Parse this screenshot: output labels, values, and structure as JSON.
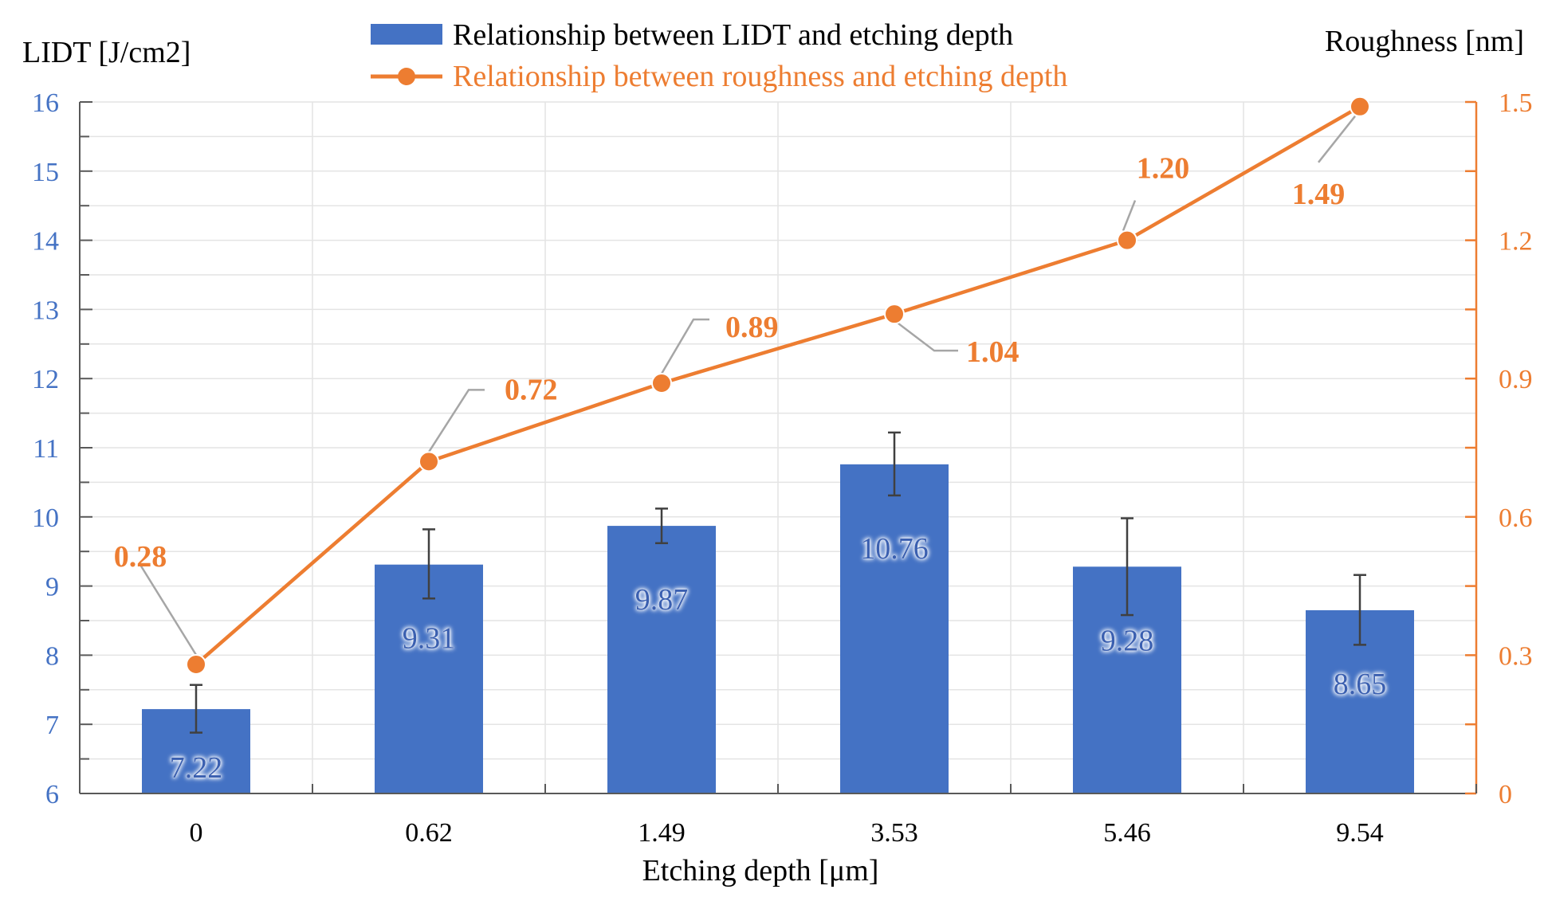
{
  "chart_data": {
    "type": "bar",
    "title": "",
    "categories": [
      "0",
      "0.62",
      "1.49",
      "3.53",
      "5.46",
      "9.54"
    ],
    "xlabel": "Etching depth [μm]",
    "ylabel": "LIDT [J/cm2]",
    "y2label": "Roughness [nm]",
    "ylim": [
      6,
      16
    ],
    "y2lim": [
      0,
      1.5
    ],
    "yticks": [
      6,
      7,
      8,
      9,
      10,
      11,
      12,
      13,
      14,
      15,
      16
    ],
    "yticklabels": [
      "6",
      "7",
      "8",
      "9",
      "10",
      "11",
      "12",
      "13",
      "14",
      "15",
      "16"
    ],
    "y2ticks": [
      0,
      0.3,
      0.6,
      0.9,
      1.2,
      1.5
    ],
    "y2ticklabels": [
      "0",
      "0.3",
      "0.6",
      "0.9",
      "1.2",
      "1.5"
    ],
    "grid": true,
    "legend_position": "top-center",
    "series": [
      {
        "name": "Relationship between LIDT and etching depth",
        "type": "bar",
        "axis": "left",
        "color": "#4472C4",
        "values": [
          7.22,
          9.31,
          9.87,
          10.76,
          9.28,
          8.65
        ],
        "labels": [
          "7.22",
          "9.31",
          "9.87",
          "10.76",
          "9.28",
          "8.65"
        ],
        "error_low": [
          6.88,
          8.82,
          9.62,
          10.31,
          8.58,
          8.15
        ],
        "error_high": [
          7.57,
          9.82,
          10.12,
          11.22,
          9.98,
          9.16
        ]
      },
      {
        "name": "Relationship between roughness and etching depth",
        "type": "line",
        "axis": "right",
        "color": "#ED7D31",
        "values": [
          0.28,
          0.72,
          0.89,
          1.04,
          1.2,
          1.49
        ],
        "labels": [
          "0.28",
          "0.72",
          "0.89",
          "1.04",
          "1.20",
          "1.49"
        ]
      }
    ]
  },
  "colors": {
    "bar": "#4472C4",
    "line": "#ED7D31",
    "left_axis": "#4472C4",
    "right_axis": "#ED7D31",
    "grid": "#E4E4E4",
    "axis": "#595959",
    "error_bar": "#404040",
    "leader": "#A6A6A6"
  }
}
